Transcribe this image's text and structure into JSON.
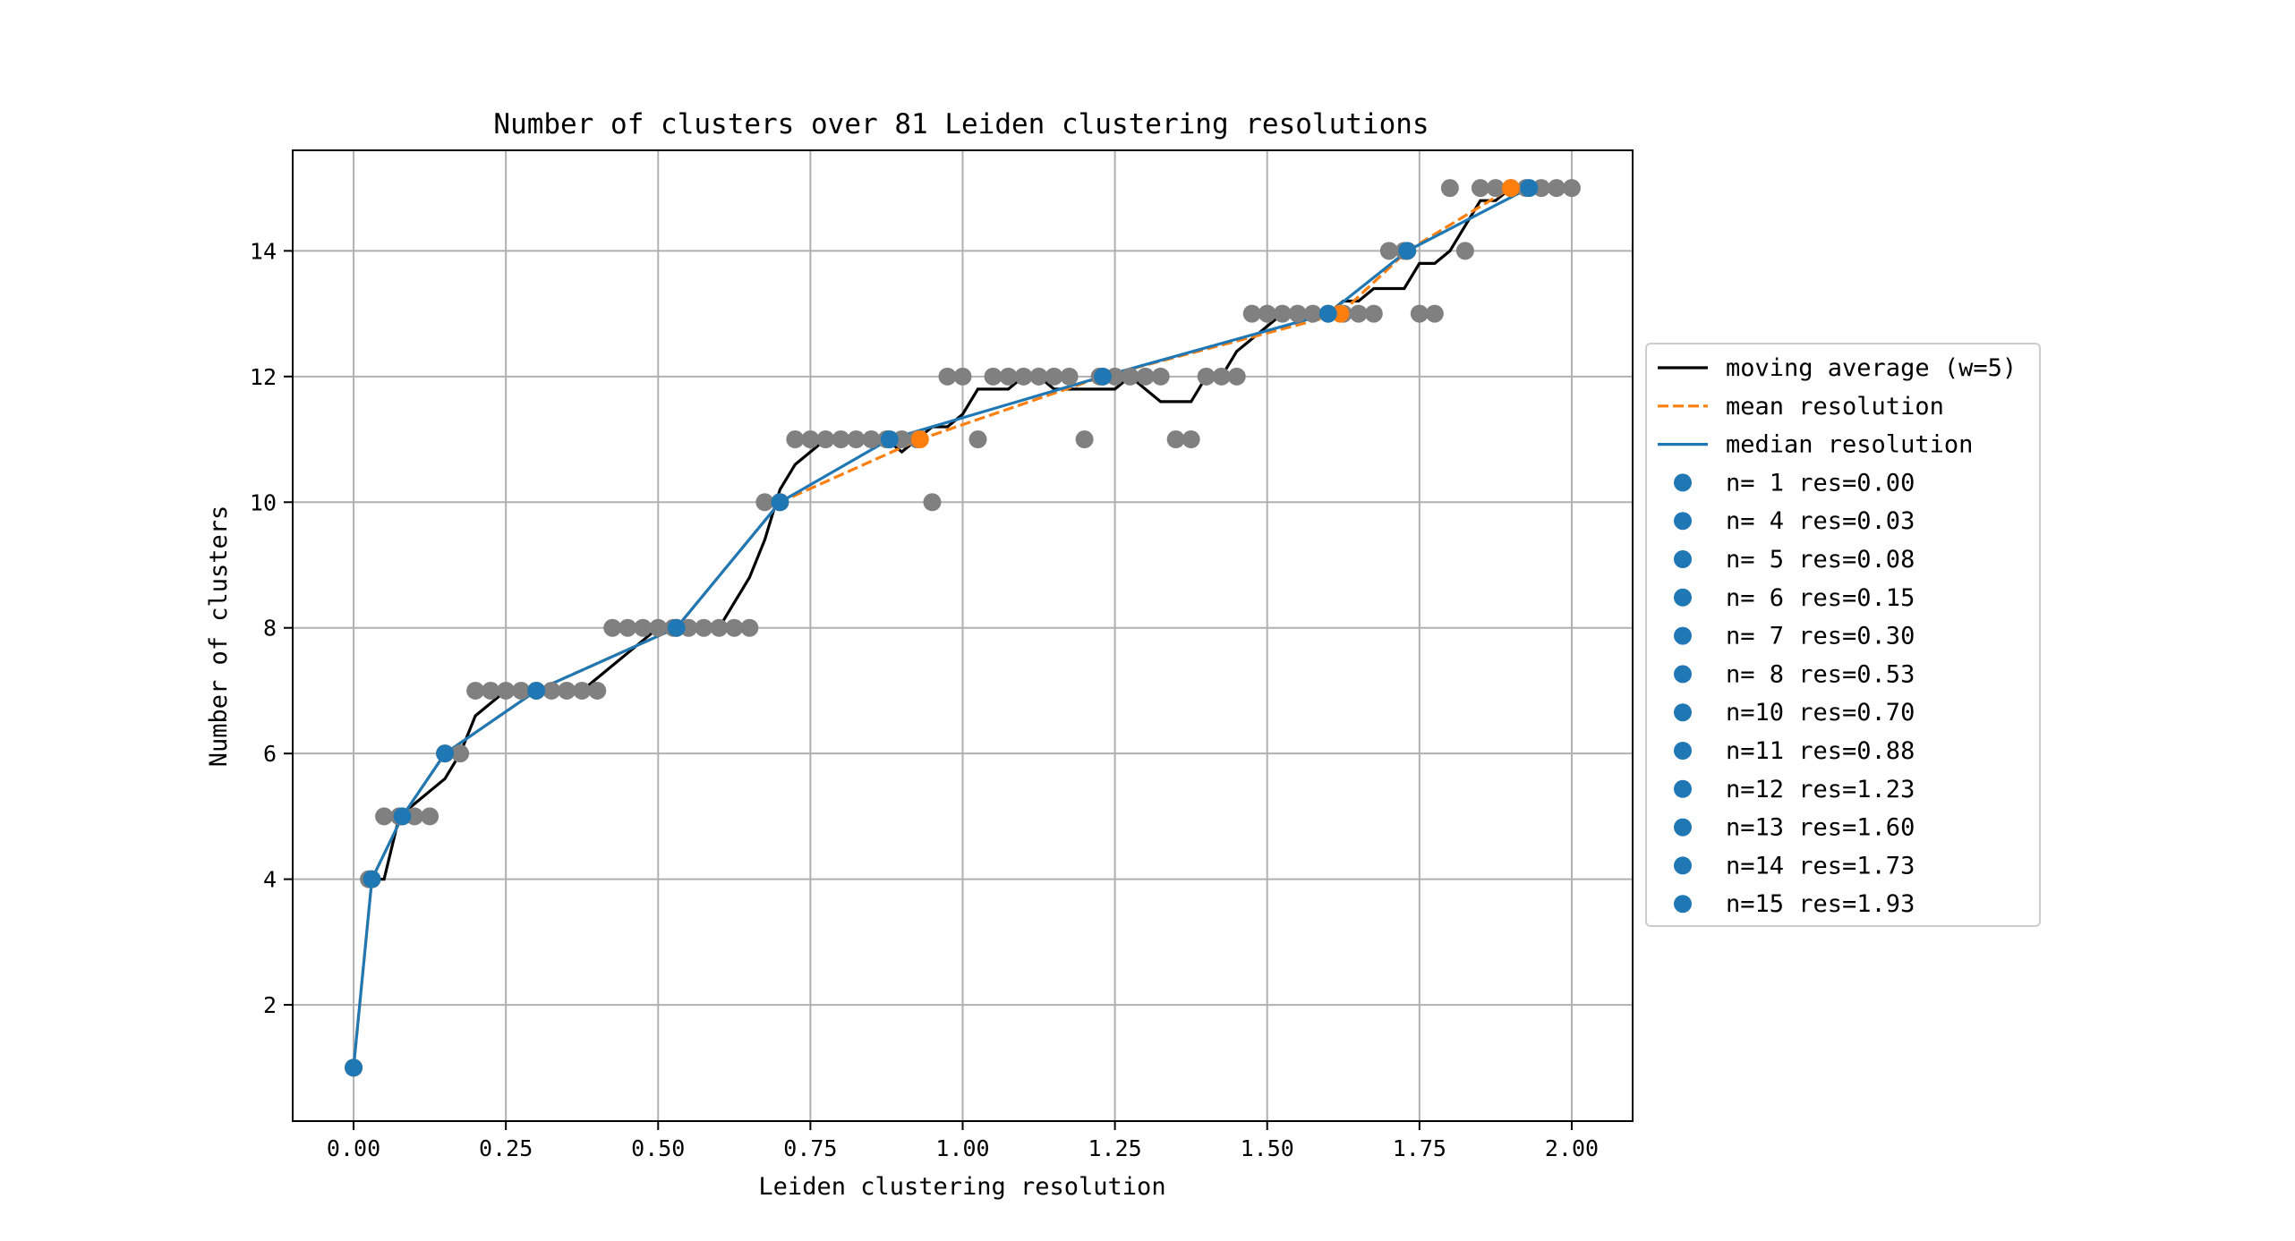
{
  "chart_data": {
    "type": "scatter",
    "title": "Number of clusters over 81 Leiden clustering resolutions",
    "xlabel": "Leiden clustering resolution",
    "ylabel": "Number of clusters",
    "xlim": [
      -0.1,
      2.1
    ],
    "ylim": [
      0.15,
      15.6
    ],
    "xticks": [
      "0.00",
      "0.25",
      "0.50",
      "0.75",
      "1.00",
      "1.25",
      "1.50",
      "1.75",
      "2.00"
    ],
    "yticks": [
      "2",
      "4",
      "6",
      "8",
      "10",
      "12",
      "14"
    ],
    "grid": true,
    "legend_position": "center right outside",
    "points": {
      "x": [
        0.0,
        0.025,
        0.05,
        0.075,
        0.1,
        0.125,
        0.15,
        0.175,
        0.2,
        0.225,
        0.25,
        0.275,
        0.3,
        0.325,
        0.35,
        0.375,
        0.4,
        0.425,
        0.45,
        0.475,
        0.5,
        0.525,
        0.55,
        0.575,
        0.6,
        0.625,
        0.65,
        0.675,
        0.7,
        0.725,
        0.75,
        0.775,
        0.8,
        0.825,
        0.85,
        0.875,
        0.9,
        0.925,
        0.95,
        0.975,
        1.0,
        1.025,
        1.05,
        1.075,
        1.1,
        1.125,
        1.15,
        1.175,
        1.2,
        1.225,
        1.25,
        1.275,
        1.3,
        1.325,
        1.35,
        1.375,
        1.4,
        1.425,
        1.45,
        1.475,
        1.5,
        1.525,
        1.55,
        1.575,
        1.6,
        1.625,
        1.65,
        1.675,
        1.7,
        1.725,
        1.75,
        1.775,
        1.8,
        1.825,
        1.85,
        1.875,
        1.9,
        1.925,
        1.95,
        1.975,
        2.0
      ],
      "y": [
        1,
        4,
        5,
        5,
        5,
        5,
        6,
        6,
        7,
        7,
        7,
        7,
        7,
        7,
        7,
        7,
        7,
        8,
        8,
        8,
        8,
        8,
        8,
        8,
        8,
        8,
        8,
        10,
        10,
        11,
        11,
        11,
        11,
        11,
        11,
        11,
        11,
        11,
        10,
        12,
        12,
        11,
        12,
        12,
        12,
        12,
        12,
        12,
        11,
        12,
        12,
        12,
        12,
        12,
        11,
        11,
        12,
        12,
        12,
        13,
        13,
        13,
        13,
        13,
        13,
        13,
        13,
        13,
        14,
        14,
        13,
        13,
        15,
        14,
        15,
        15,
        15,
        15,
        15,
        15,
        15
      ],
      "color": "#808080"
    },
    "series": [
      {
        "name": "moving average (w=5)",
        "color": "#000000",
        "style": "solid",
        "x": [
          0.025,
          0.05,
          0.075,
          0.1,
          0.125,
          0.15,
          0.175,
          0.2,
          0.225,
          0.25,
          0.275,
          0.3,
          0.325,
          0.35,
          0.375,
          0.4,
          0.425,
          0.45,
          0.475,
          0.5,
          0.525,
          0.55,
          0.575,
          0.6,
          0.625,
          0.65,
          0.675,
          0.7,
          0.725,
          0.75,
          0.775,
          0.8,
          0.825,
          0.85,
          0.875,
          0.9,
          0.925,
          0.95,
          0.975,
          1.0,
          1.025,
          1.05,
          1.075,
          1.1,
          1.125,
          1.15,
          1.175,
          1.2,
          1.225,
          1.25,
          1.275,
          1.3,
          1.325,
          1.35,
          1.375,
          1.4,
          1.425,
          1.45,
          1.475,
          1.5,
          1.525,
          1.55,
          1.575,
          1.6,
          1.625,
          1.65,
          1.675,
          1.7,
          1.725,
          1.75,
          1.775,
          1.8,
          1.825,
          1.85,
          1.875,
          1.9,
          1.925,
          1.95
        ],
        "y": [
          4.0,
          4.0,
          5.0,
          5.2,
          5.4,
          5.6,
          6.0,
          6.6,
          6.8,
          7.0,
          7.0,
          7.0,
          7.0,
          7.0,
          7.0,
          7.2,
          7.4,
          7.6,
          7.8,
          8.0,
          8.0,
          8.0,
          8.0,
          8.0,
          8.4,
          8.8,
          9.4,
          10.2,
          10.6,
          10.8,
          11.0,
          11.0,
          11.0,
          11.0,
          11.0,
          10.8,
          11.0,
          11.2,
          11.2,
          11.4,
          11.8,
          11.8,
          11.8,
          12.0,
          12.0,
          11.8,
          11.8,
          11.8,
          11.8,
          11.8,
          12.0,
          11.8,
          11.6,
          11.6,
          11.6,
          12.0,
          12.0,
          12.4,
          12.6,
          12.8,
          13.0,
          13.0,
          13.0,
          13.0,
          13.2,
          13.2,
          13.4,
          13.4,
          13.4,
          13.8,
          13.8,
          14.0,
          14.4,
          14.8,
          14.8,
          15.0,
          15.0,
          15.0
        ]
      },
      {
        "name": "mean resolution",
        "color": "#ff7f0e",
        "style": "dashed",
        "x": [
          0.0,
          0.03,
          0.08,
          0.15,
          0.3,
          0.53,
          0.7,
          0.93,
          1.23,
          1.62,
          1.73,
          1.9
        ],
        "y": [
          1,
          4,
          5,
          6,
          7,
          8,
          10,
          11,
          12,
          13,
          14,
          15
        ]
      },
      {
        "name": "median resolution",
        "color": "#1f77b4",
        "style": "solid",
        "x": [
          0.0,
          0.03,
          0.08,
          0.15,
          0.3,
          0.53,
          0.7,
          0.88,
          1.23,
          1.6,
          1.73,
          1.93
        ],
        "y": [
          1,
          4,
          5,
          6,
          7,
          8,
          10,
          11,
          12,
          13,
          14,
          15
        ]
      }
    ],
    "highlights": [
      {
        "label": "n= 1 res=0.00",
        "x": 0.0,
        "y": 1
      },
      {
        "label": "n= 4 res=0.03",
        "x": 0.03,
        "y": 4
      },
      {
        "label": "n= 5 res=0.08",
        "x": 0.08,
        "y": 5
      },
      {
        "label": "n= 6 res=0.15",
        "x": 0.15,
        "y": 6
      },
      {
        "label": "n= 7 res=0.30",
        "x": 0.3,
        "y": 7
      },
      {
        "label": "n= 8 res=0.53",
        "x": 0.53,
        "y": 8
      },
      {
        "label": "n=10 res=0.70",
        "x": 0.7,
        "y": 10
      },
      {
        "label": "n=11 res=0.88",
        "x": 0.88,
        "y": 11
      },
      {
        "label": "n=12 res=1.23",
        "x": 1.23,
        "y": 12
      },
      {
        "label": "n=13 res=1.60",
        "x": 1.6,
        "y": 13
      },
      {
        "label": "n=14 res=1.73",
        "x": 1.73,
        "y": 14
      },
      {
        "label": "n=15 res=1.93",
        "x": 1.93,
        "y": 15
      }
    ],
    "highlight_color": "#1f77b4",
    "mean_points_color": "#ff7f0e"
  }
}
